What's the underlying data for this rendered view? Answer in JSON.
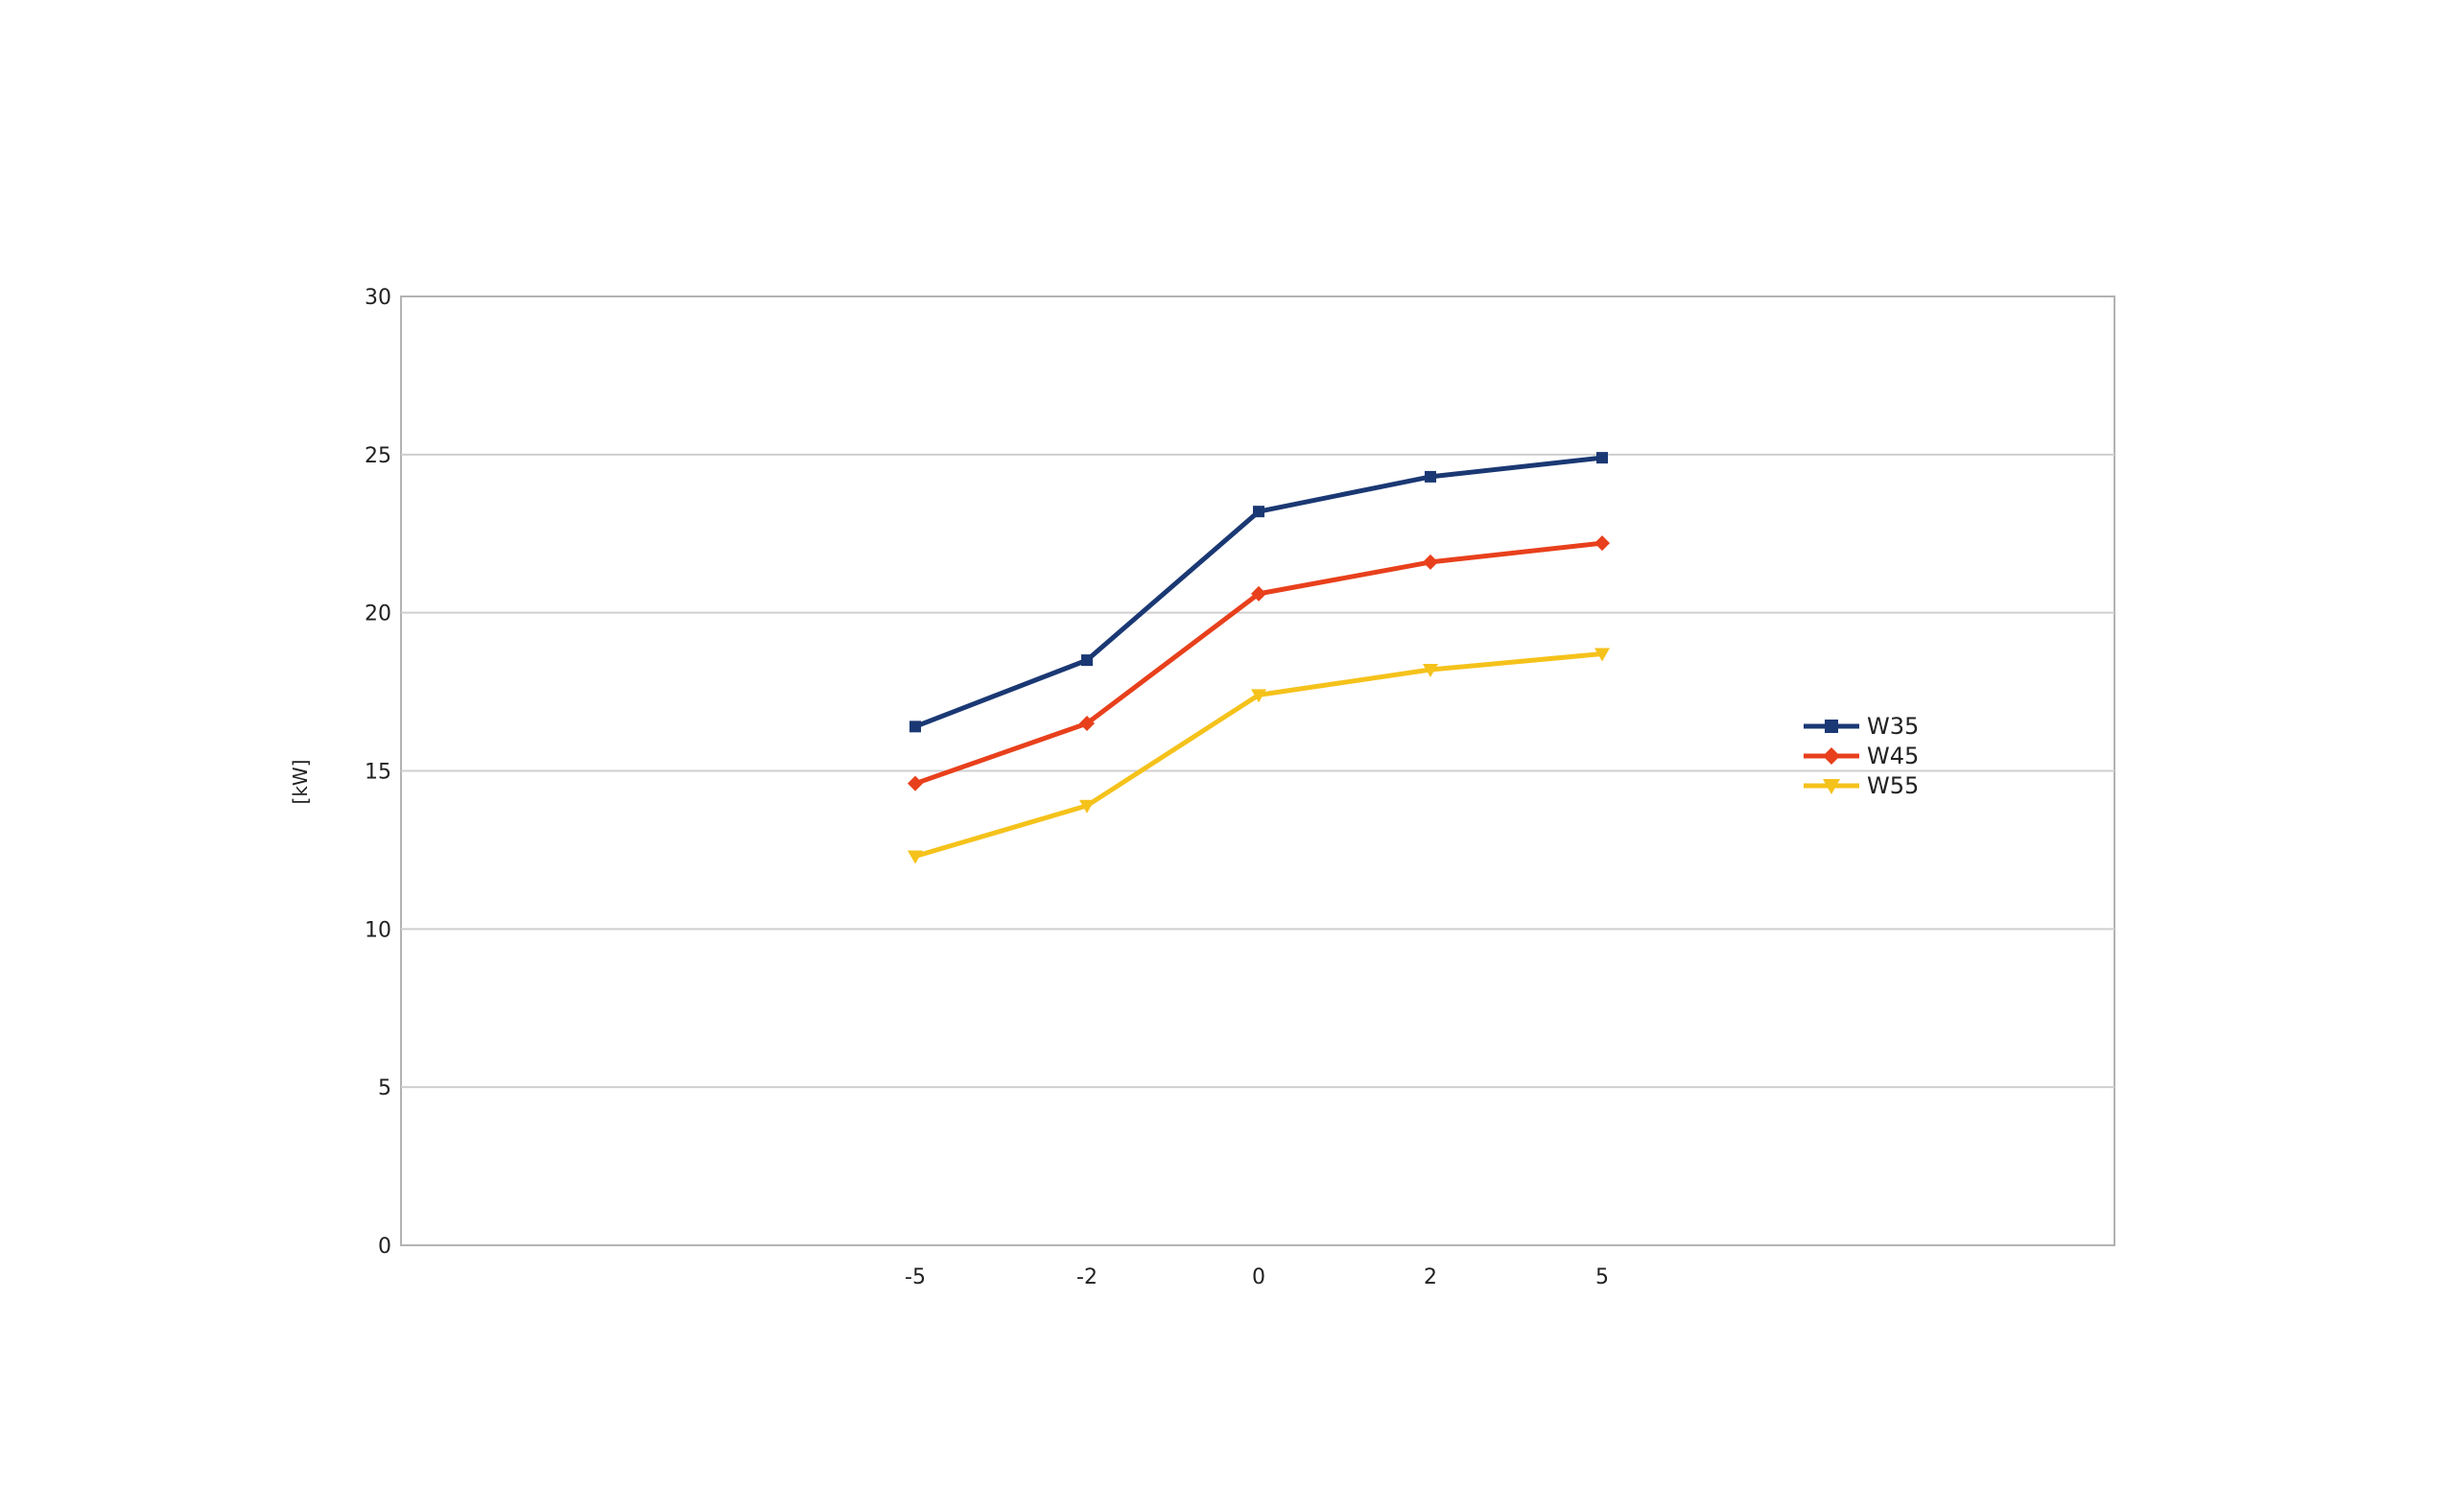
{
  "chart_data": {
    "type": "line",
    "title": "",
    "xlabel": "",
    "ylabel": "[kW]",
    "categories": [
      "-5",
      "-2",
      "0",
      "2",
      "5"
    ],
    "ylim": [
      0,
      30
    ],
    "yticks": [
      0,
      5,
      10,
      15,
      20,
      25,
      30
    ],
    "grid": true,
    "legend_position": "right",
    "series": [
      {
        "name": "W35",
        "color": "#1a3873",
        "marker": "square",
        "values": [
          16.4,
          18.5,
          23.2,
          24.3,
          24.9
        ]
      },
      {
        "name": "W45",
        "color": "#e8401c",
        "marker": "diamond",
        "values": [
          14.6,
          16.5,
          20.6,
          21.6,
          22.2
        ]
      },
      {
        "name": "W55",
        "color": "#f5c21b",
        "marker": "triangle-down",
        "values": [
          12.3,
          13.9,
          17.4,
          18.2,
          18.7
        ]
      }
    ]
  }
}
